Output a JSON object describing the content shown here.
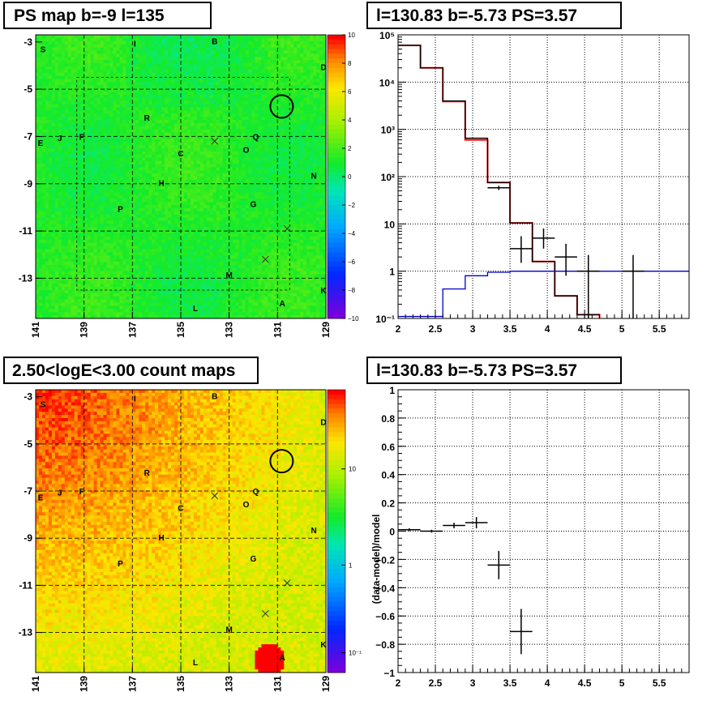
{
  "panels": {
    "ps_map": {
      "title": "PS map b=-9 l=135",
      "xticks": [
        "141",
        "139",
        "137",
        "135",
        "133",
        "131",
        "129"
      ],
      "yticks": [
        "-3",
        "-5",
        "-7",
        "-9",
        "-11",
        "-13"
      ],
      "colorbar": [
        "10",
        "8",
        "6",
        "4",
        "2",
        "0",
        "−2",
        "−4",
        "−6",
        "−8",
        "−10"
      ]
    },
    "count_map": {
      "title": "2.50<logE<3.00 count maps",
      "xticks": [
        "141",
        "139",
        "137",
        "135",
        "133",
        "131",
        "129"
      ],
      "yticks": [
        "-3",
        "-5",
        "-7",
        "-9",
        "-11",
        "-13"
      ],
      "colorbar": [
        "10",
        "1",
        "10⁻¹"
      ]
    },
    "spectrum": {
      "title": "l=130.83 b=-5.73 PS=3.57",
      "xticks": [
        "2",
        "2.5",
        "3",
        "3.5",
        "4",
        "4.5",
        "5",
        "5.5"
      ],
      "yticks": [
        "10⁵",
        "10⁴",
        "10³",
        "10²",
        "10",
        "1",
        "10⁻¹"
      ]
    },
    "residual": {
      "title": "l=130.83 b=-5.73 PS=3.57",
      "ylabel": "(data-model)/model",
      "xticks": [
        "2",
        "2.5",
        "3",
        "3.5",
        "4",
        "4.5",
        "5",
        "5.5"
      ],
      "yticks": [
        "1",
        "0.8",
        "0.6",
        "0.4",
        "0.2",
        "0",
        "−0.2",
        "−0.4",
        "−0.6",
        "−0.8",
        "−1"
      ]
    }
  },
  "sources": [
    {
      "label": "S",
      "l": 140.7,
      "b": -3.35
    },
    {
      "label": "I",
      "l": 136.9,
      "b": -3.1
    },
    {
      "label": "B",
      "l": 133.6,
      "b": -3.0
    },
    {
      "label": "D",
      "l": 129.1,
      "b": -4.1
    },
    {
      "label": "R",
      "l": 136.4,
      "b": -6.25
    },
    {
      "label": "J",
      "l": 140.0,
      "b": -7.1
    },
    {
      "label": "F",
      "l": 139.1,
      "b": -7.05
    },
    {
      "label": "E",
      "l": 140.8,
      "b": -7.3
    },
    {
      "label": "Q",
      "l": 131.9,
      "b": -7.05
    },
    {
      "label": "O",
      "l": 132.3,
      "b": -7.6
    },
    {
      "label": "C",
      "l": 135.0,
      "b": -7.75
    },
    {
      "label": "N",
      "l": 129.5,
      "b": -8.7
    },
    {
      "label": "H",
      "l": 135.8,
      "b": -9.0
    },
    {
      "label": "G",
      "l": 132.0,
      "b": -9.9
    },
    {
      "label": "P",
      "l": 137.5,
      "b": -10.1
    },
    {
      "label": "M",
      "l": 133.0,
      "b": -12.9
    },
    {
      "label": "K",
      "l": 129.1,
      "b": -13.55
    },
    {
      "label": "A",
      "l": 130.8,
      "b": -14.1
    },
    {
      "label": "L",
      "l": 134.4,
      "b": -14.3
    }
  ],
  "crosses": [
    {
      "l": 133.6,
      "b": -7.2
    },
    {
      "l": 130.6,
      "b": -10.9
    },
    {
      "l": 131.5,
      "b": -12.2
    }
  ],
  "marker_circle": {
    "l": 130.83,
    "b": -5.73
  },
  "colors": {
    "model": "#ff0000",
    "ps": "#0000cc",
    "data": "#000000"
  },
  "chart_data": [
    {
      "type": "heatmap",
      "title": "PS map b=-9 l=135",
      "xlim": [
        141,
        129
      ],
      "ylim": [
        -14.7,
        -2.7
      ],
      "zlim": [
        -10,
        10
      ],
      "colorscale": "rainbow",
      "note_values": "mostly in range 0 to 3"
    },
    {
      "type": "heatmap",
      "title": "2.50<logE<3.00 count maps",
      "xlim": [
        141,
        129
      ],
      "ylim": [
        -14.7,
        -2.7
      ],
      "zscale": "log",
      "zlim": [
        0.1,
        30
      ]
    },
    {
      "type": "line",
      "title": "l=130.83 b=-5.73 PS=3.57",
      "xlim": [
        2.0,
        5.9
      ],
      "ylim": [
        0.1,
        100000
      ],
      "yscale": "log",
      "grid": true,
      "series": [
        {
          "kind": "step",
          "color": "#ff0000",
          "edges": [
            2.0,
            2.3,
            2.6,
            2.9,
            3.2,
            3.5,
            3.8,
            4.1,
            4.4,
            4.7
          ],
          "values": [
            60000,
            20000,
            3900,
            600,
            75,
            10.5,
            1.6,
            0.3,
            0.12
          ]
        },
        {
          "kind": "step",
          "color": "#000000",
          "edges": [
            2.0,
            2.3,
            2.6,
            2.9,
            3.2,
            3.5,
            3.8,
            4.1,
            4.4,
            4.7
          ],
          "values": [
            60000,
            20000,
            4000,
            650,
            75,
            10.5,
            1.6,
            0.3,
            0.12
          ]
        },
        {
          "kind": "step",
          "color": "#0000cc",
          "edges": [
            2.0,
            2.3,
            2.6,
            2.9,
            3.2,
            3.5,
            3.8,
            4.1,
            4.4,
            4.7,
            5.9
          ],
          "values": [
            0.11,
            0.11,
            0.42,
            0.8,
            0.95,
            1.0,
            1.0,
            1.0,
            1.0,
            1.0
          ]
        },
        {
          "kind": "errorbar",
          "color": "#000000",
          "points": [
            {
              "x": 3.35,
              "xerr": 0.15,
              "y": 58,
              "ylo": 52,
              "yhi": 64
            },
            {
              "x": 3.65,
              "xerr": 0.15,
              "y": 3,
              "ylo": 1.5,
              "yhi": 5.5
            },
            {
              "x": 3.95,
              "xerr": 0.15,
              "y": 5,
              "ylo": 3,
              "yhi": 8
            },
            {
              "x": 4.25,
              "xerr": 0.15,
              "y": 2,
              "ylo": 0.8,
              "yhi": 3.8
            },
            {
              "x": 4.55,
              "xerr": 0.15,
              "y": 1,
              "ylo": 0.1,
              "yhi": 2.2
            },
            {
              "x": 5.15,
              "xerr": 0.15,
              "y": 1,
              "ylo": 0.1,
              "yhi": 2.2
            }
          ]
        }
      ]
    },
    {
      "type": "scatter",
      "title": "l=130.83 b=-5.73 PS=3.57",
      "ylabel": "(data-model)/model",
      "xlim": [
        2.0,
        5.9
      ],
      "ylim": [
        -1,
        1
      ],
      "grid": true,
      "points": [
        {
          "x": 2.15,
          "xerr": 0.15,
          "y": 0.01,
          "ylo": 0.0,
          "yhi": 0.02
        },
        {
          "x": 2.45,
          "xerr": 0.15,
          "y": 0.0,
          "ylo": -0.01,
          "yhi": 0.01
        },
        {
          "x": 2.75,
          "xerr": 0.15,
          "y": 0.04,
          "ylo": 0.02,
          "yhi": 0.06
        },
        {
          "x": 3.05,
          "xerr": 0.15,
          "y": 0.06,
          "ylo": 0.02,
          "yhi": 0.1
        },
        {
          "x": 3.35,
          "xerr": 0.15,
          "y": -0.24,
          "ylo": -0.34,
          "yhi": -0.14
        },
        {
          "x": 3.65,
          "xerr": 0.15,
          "y": -0.71,
          "ylo": -0.87,
          "yhi": -0.55
        }
      ]
    }
  ]
}
